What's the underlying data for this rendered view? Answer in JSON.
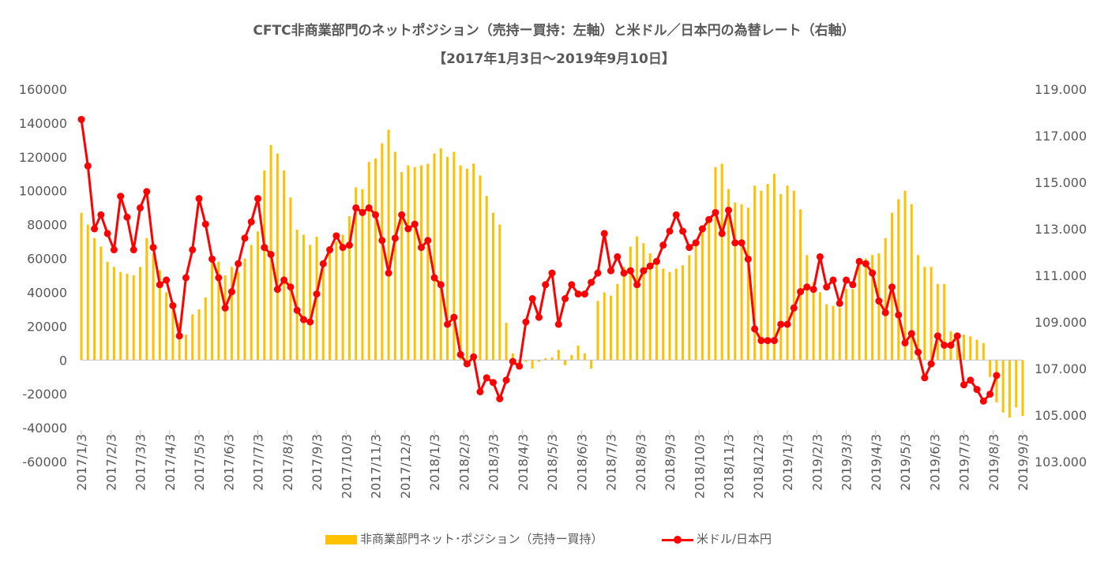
{
  "chart_data": {
    "type": "bar+line",
    "title": "CFTC非商業部門のネットポジション（売持ー買持：左軸）と米ドル／日本円の為替レート（右軸）",
    "subtitle": "【2017年1月3日～2019年9月10日】",
    "y_left": {
      "ylim": [
        -60000,
        160000
      ],
      "ticks": [
        "160000",
        "140000",
        "120000",
        "100000",
        "80000",
        "60000",
        "40000",
        "20000",
        "0",
        "-20000",
        "-40000",
        "-60000"
      ]
    },
    "y_right": {
      "ylim": [
        103,
        119
      ],
      "ticks": [
        "119.000",
        "117.000",
        "115.000",
        "113.000",
        "111.000",
        "109.000",
        "107.000",
        "105.000",
        "103.000"
      ]
    },
    "x_labels": [
      "2017/1/3",
      "2017/2/3",
      "2017/3/3",
      "2017/4/3",
      "2017/5/3",
      "2017/6/3",
      "2017/7/3",
      "2017/8/3",
      "2017/9/3",
      "2017/10/3",
      "2017/11/3",
      "2017/12/3",
      "2018/1/3",
      "2018/2/3",
      "2018/3/3",
      "2018/4/3",
      "2018/5/3",
      "2018/6/3",
      "2018/7/3",
      "2018/8/3",
      "2018/9/3",
      "2018/10/3",
      "2018/11/3",
      "2018/12/3",
      "2019/1/3",
      "2019/2/3",
      "2019/3/3",
      "2019/4/3",
      "2019/5/3",
      "2019/6/3",
      "2019/7/3",
      "2019/8/3",
      "2019/9/3"
    ],
    "series": [
      {
        "name": "非商業部門ネット･ポジション（売持ー買持）",
        "axis": "left",
        "color": "#FFC000",
        "values": [
          87000,
          80000,
          72000,
          67000,
          58000,
          55000,
          52000,
          51000,
          50000,
          55000,
          72000,
          63000,
          53000,
          40000,
          30000,
          22000,
          15000,
          27000,
          30000,
          37000,
          60000,
          58000,
          50000,
          55000,
          52000,
          60000,
          68000,
          76000,
          112000,
          127000,
          122000,
          112000,
          96000,
          77000,
          74000,
          68000,
          73000,
          55000,
          63000,
          70000,
          74000,
          85000,
          102000,
          101000,
          117000,
          119000,
          128000,
          136000,
          123000,
          111000,
          115000,
          114000,
          115000,
          116000,
          122000,
          125000,
          120000,
          123000,
          115000,
          113000,
          116000,
          109000,
          97000,
          87000,
          80000,
          22000,
          4000,
          -3000,
          -1000,
          -5000,
          -1000,
          1000,
          1500,
          6000,
          -3000,
          3000,
          8500,
          4000,
          -5000,
          35000,
          40000,
          38000,
          45000,
          55000,
          67000,
          73000,
          69000,
          63000,
          58000,
          54000,
          52000,
          54000,
          56000,
          62000,
          70000,
          78000,
          85000,
          114000,
          116000,
          101000,
          93000,
          92000,
          90000,
          103000,
          100000,
          104000,
          110000,
          98000,
          103000,
          100000,
          89000,
          62000,
          46000,
          40000,
          33000,
          32000,
          31000,
          42000,
          42000,
          58000,
          60000,
          62000,
          63000,
          72000,
          87000,
          95000,
          100000,
          92000,
          62000,
          55000,
          55000,
          45000,
          45000,
          17000,
          15000,
          15000,
          14000,
          12000,
          10000,
          -10000,
          -25000,
          -31000,
          -34000,
          -28000,
          -33000
        ]
      },
      {
        "name": "米ドル/日本円",
        "axis": "right",
        "color": "#FF0000",
        "values": [
          117.7,
          115.7,
          113,
          113.6,
          112.8,
          112.1,
          114.4,
          113.5,
          112.1,
          113.9,
          114.6,
          112.2,
          110.6,
          110.8,
          109.7,
          108.4,
          110.9,
          112.1,
          114.3,
          113.2,
          111.7,
          110.9,
          109.6,
          110.3,
          111.5,
          112.6,
          113.3,
          114.3,
          112.2,
          111.9,
          110.4,
          110.8,
          110.5,
          109.5,
          109.1,
          109,
          110.2,
          111.5,
          112.1,
          112.7,
          112.2,
          112.3,
          113.9,
          113.7,
          113.9,
          113.6,
          112.5,
          111.1,
          112.6,
          113.6,
          113,
          113.2,
          112.2,
          112.5,
          110.9,
          110.6,
          108.9,
          109.2,
          107.6,
          107.2,
          107.5,
          106,
          106.6,
          106.4,
          105.7,
          106.5,
          107.3,
          107.1,
          109,
          110,
          109.2,
          110.6,
          111.1,
          108.9,
          110,
          110.6,
          110.2,
          110.2,
          110.7,
          111.1,
          112.8,
          111.2,
          111.8,
          111.1,
          111.2,
          110.6,
          111.2,
          111.4,
          111.6,
          112.3,
          112.9,
          113.6,
          112.9,
          112.2,
          112.4,
          113,
          113.4,
          113.7,
          112.8,
          113.8,
          112.4,
          112.4,
          111.7,
          108.7,
          108.2,
          108.2,
          108.2,
          108.9,
          108.9,
          109.6,
          110.3,
          110.5,
          110.4,
          111.8,
          110.5,
          110.8,
          109.8,
          110.8,
          110.6,
          111.6,
          111.5,
          111.1,
          109.9,
          109.4,
          110.5,
          109.3,
          108.1,
          108.5,
          107.7,
          106.6,
          107.2,
          108.4,
          108,
          108,
          108.4,
          106.3,
          106.5,
          106.1,
          105.6,
          105.9,
          106.7
        ]
      }
    ],
    "legend_position": "bottom",
    "grid": false
  },
  "legend": {
    "bar_label": "非商業部門ネット･ポジション（売持ー買持）",
    "line_label": "米ドル/日本円"
  }
}
